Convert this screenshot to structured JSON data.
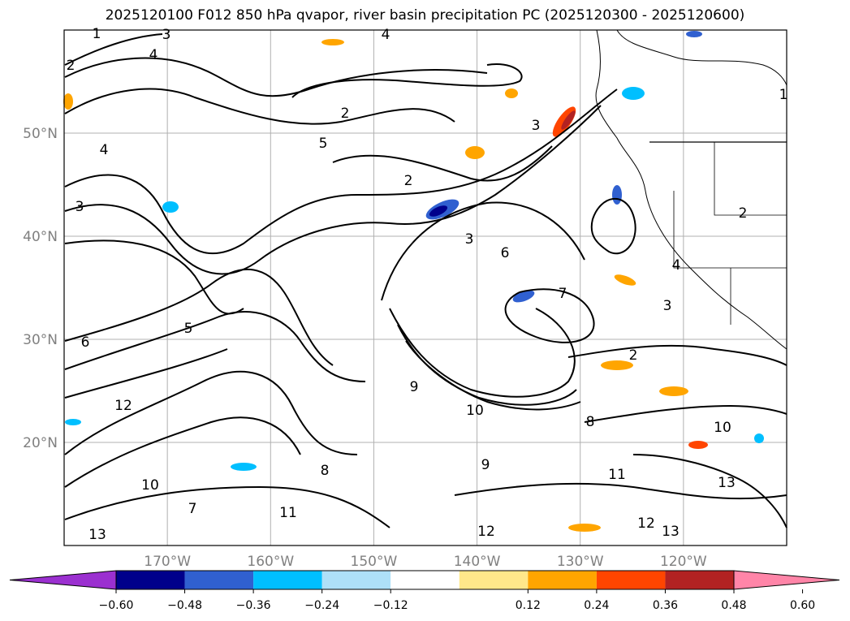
{
  "figure": {
    "title": "2025120100 F012 850 hPa qvapor, river basin precipitation PC (2025120300 - 2025120600)"
  },
  "map": {
    "projection": "PlateCarree",
    "extent": {
      "lon": [
        -180,
        -110
      ],
      "lat": [
        10,
        60
      ]
    },
    "gridlines": true,
    "lat_labels": [
      "50°N",
      "40°N",
      "30°N",
      "20°N"
    ],
    "lon_labels": [
      "170°W",
      "160°W",
      "150°W",
      "140°W",
      "130°W",
      "120°W"
    ],
    "contour_field": "850 hPa qvapor",
    "contour_labels": [
      "1",
      "2",
      "3",
      "4",
      "5",
      "6",
      "7",
      "8",
      "9",
      "10",
      "11",
      "12",
      "13"
    ],
    "fill_field": "river basin precipitation PC"
  },
  "colorbar": {
    "orientation": "horizontal",
    "extend": "both",
    "ticks": [
      "−0.60",
      "−0.48",
      "−0.36",
      "−0.24",
      "−0.12",
      "0.12",
      "0.24",
      "0.36",
      "0.48",
      "0.60"
    ],
    "bins": [
      {
        "range": "< -0.60",
        "color": "#9b30d0"
      },
      {
        "range": "-0.60 to -0.48",
        "color": "#00008b"
      },
      {
        "range": "-0.48 to -0.36",
        "color": "#3060d0"
      },
      {
        "range": "-0.36 to -0.24",
        "color": "#00bfff"
      },
      {
        "range": "-0.24 to -0.12",
        "color": "#aee0f8"
      },
      {
        "range": "-0.12 to 0.12",
        "color": "#ffffff"
      },
      {
        "range": "0.12 to 0.24",
        "color": "#ffe88a"
      },
      {
        "range": "0.24 to 0.36",
        "color": "#ffa500"
      },
      {
        "range": "0.36 to 0.48",
        "color": "#ff4500"
      },
      {
        "range": "0.48 to 0.60",
        "color": "#b22222"
      },
      {
        "range": "> 0.60",
        "color": "#ff85a8"
      }
    ]
  }
}
